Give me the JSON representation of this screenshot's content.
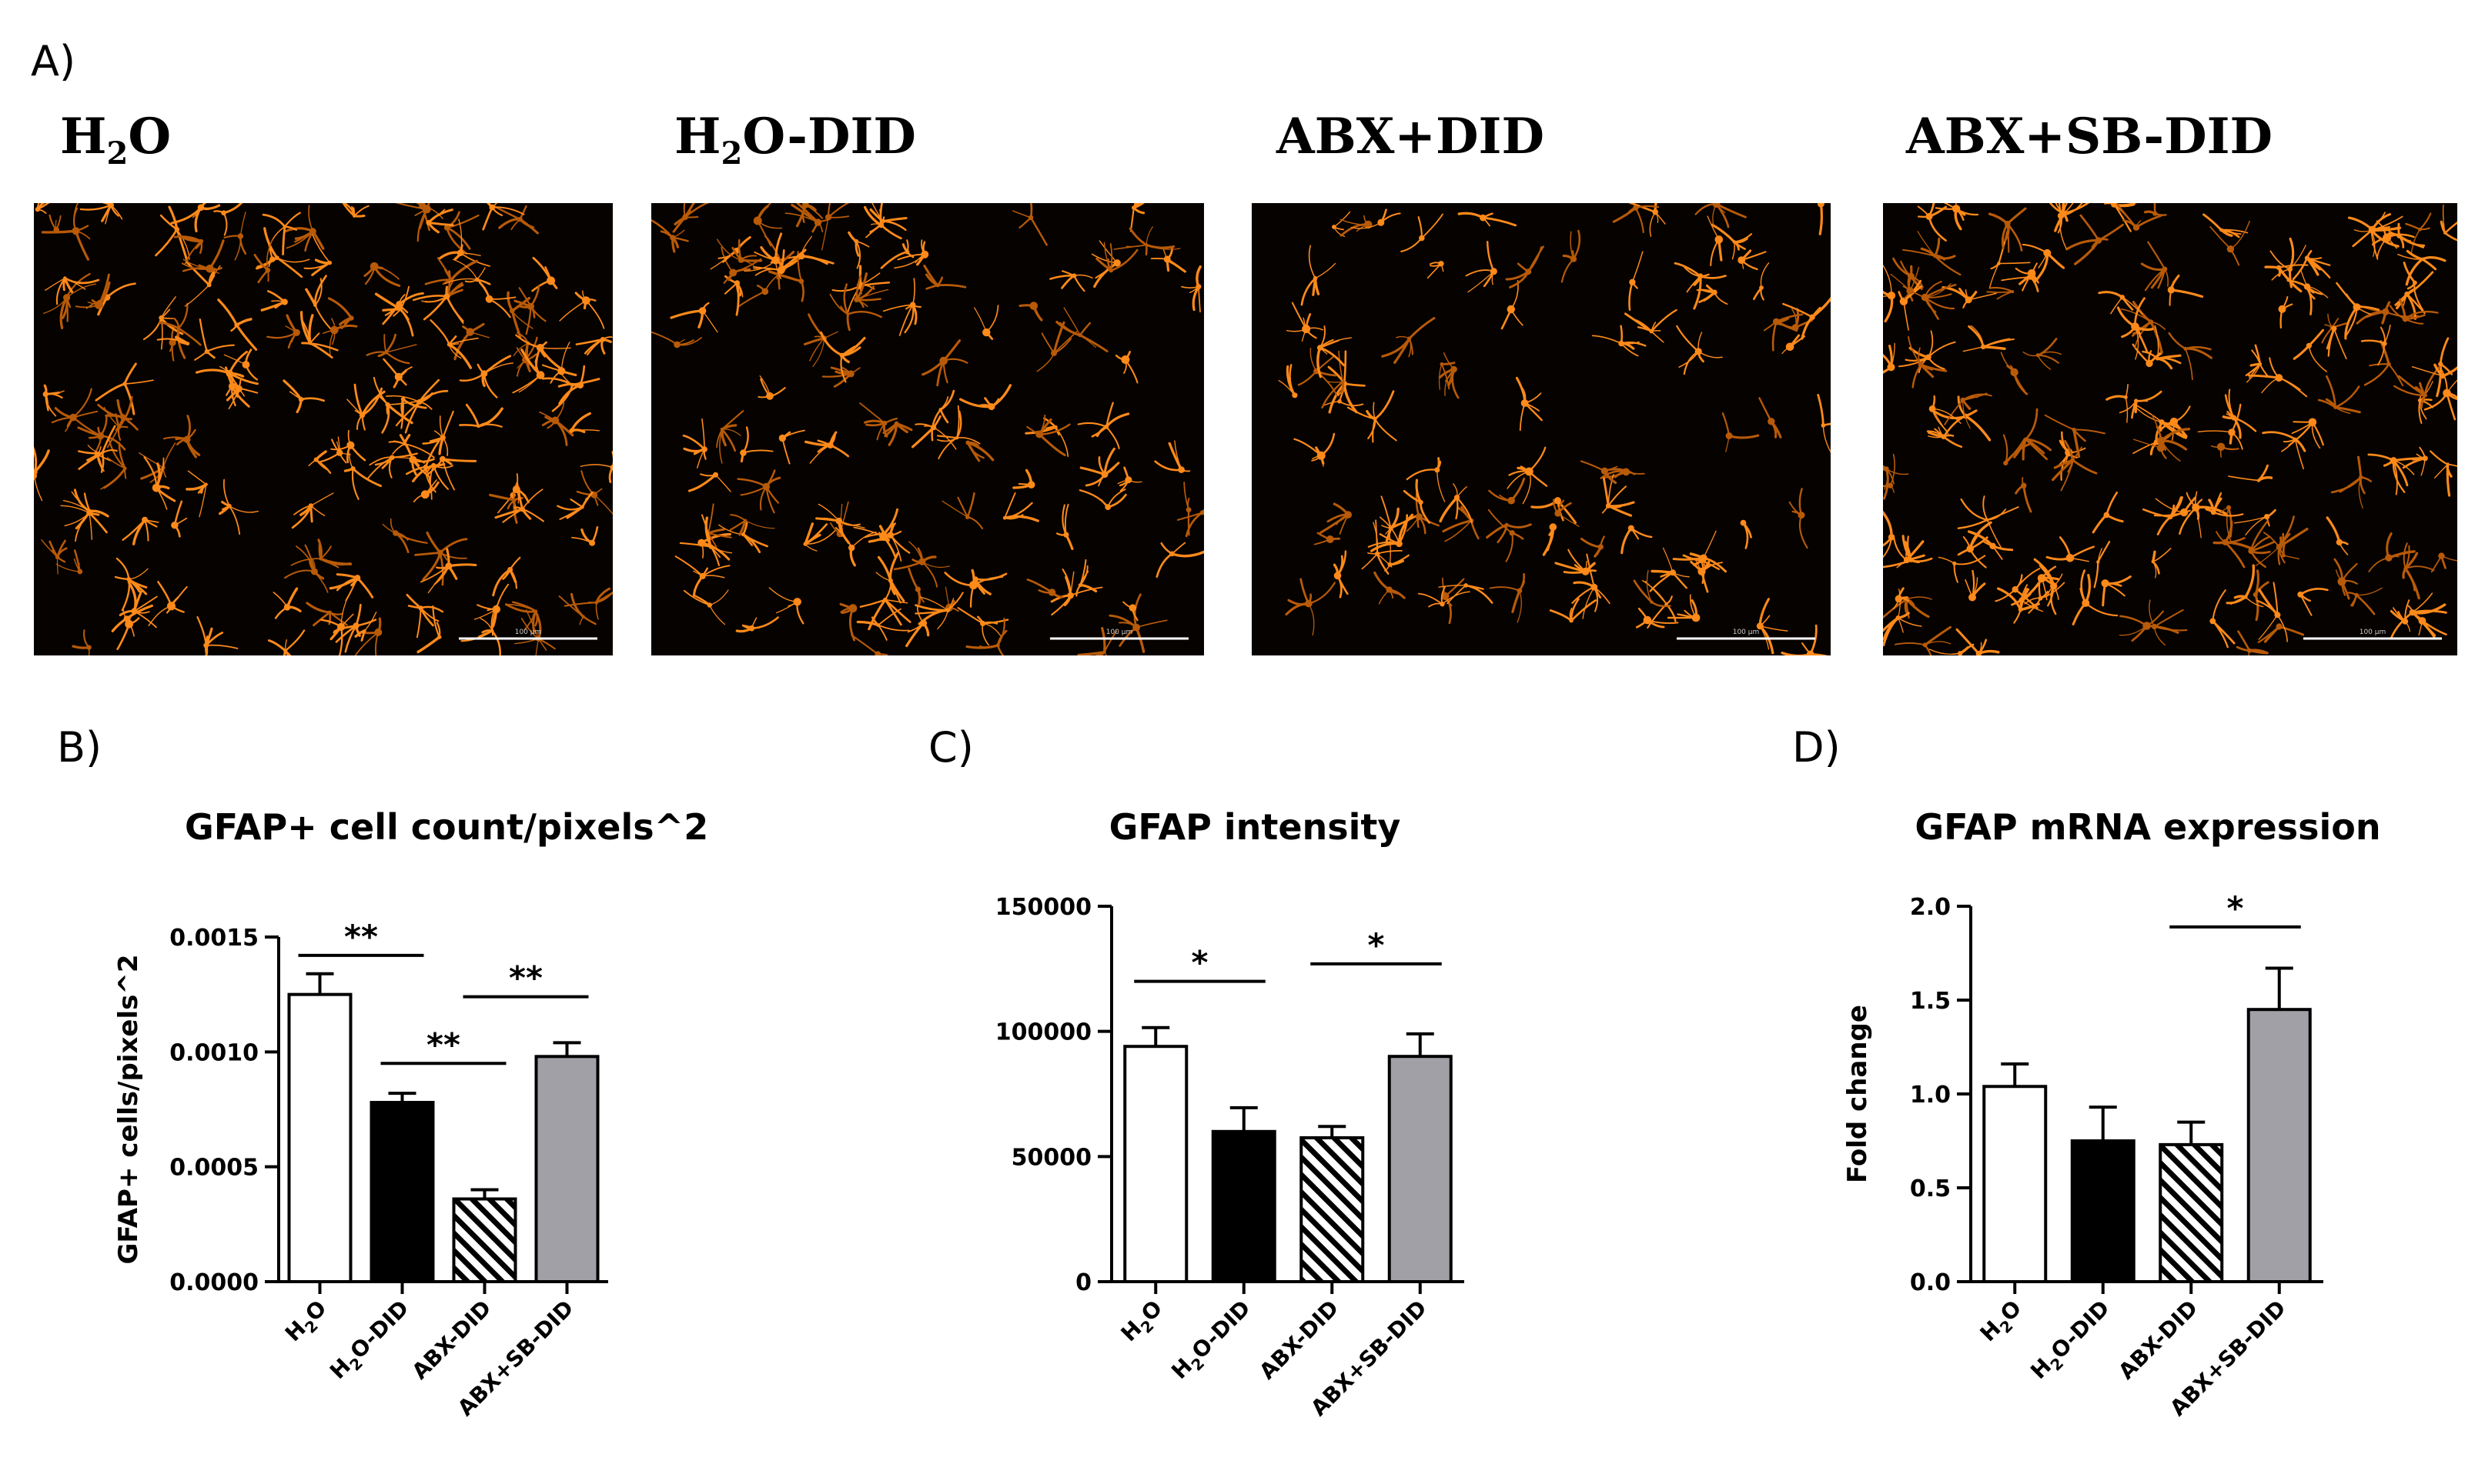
{
  "figure": {
    "panel_a_label": "A)",
    "panel_b_label": "B)",
    "panel_c_label": "C)",
    "panel_d_label": "D)"
  },
  "micrographs": [
    {
      "label_main": "H",
      "label_sub": "2",
      "label_rest": "O",
      "scale_text": "100 µm"
    },
    {
      "label_main": "H",
      "label_sub": "2",
      "label_rest": "O-DID",
      "scale_text": "100 µm"
    },
    {
      "label_main": "ABX+DID",
      "label_sub": "",
      "label_rest": "",
      "scale_text": "100 µm"
    },
    {
      "label_main": "ABX+SB-DID",
      "label_sub": "",
      "label_rest": "",
      "scale_text": "100 µm"
    }
  ],
  "colors": {
    "astrocyte": "#ff8a1a",
    "astrocyte_dim": "#b85a08",
    "background": "#050200",
    "bar_white": "#ffffff",
    "bar_black": "#000000",
    "bar_gray": "#a0a0a6"
  },
  "chart_data": [
    {
      "type": "bar",
      "title": "GFAP+ cell count/pixels^2",
      "ylabel": "GFAP+ cells/pixels^2",
      "categories": [
        {
          "main": "H",
          "sub": "2",
          "rest": "O"
        },
        {
          "main": "H",
          "sub": "2",
          "rest": "O-DID"
        },
        {
          "main": "ABX-DID",
          "sub": "",
          "rest": ""
        },
        {
          "main": "ABX+SB-DID",
          "sub": "",
          "rest": ""
        }
      ],
      "fills": [
        "white",
        "black",
        "hatch",
        "gray"
      ],
      "values": [
        0.00125,
        0.00078,
        0.00036,
        0.00098
      ],
      "errors": [
        9e-05,
        4e-05,
        4e-05,
        6e-05
      ],
      "ylim": [
        0,
        0.0015
      ],
      "yticks": [
        0,
        0.0005,
        0.001,
        0.0015
      ],
      "ytick_labels": [
        "0.0000",
        "0.0005",
        "0.0010",
        "0.0015"
      ],
      "significance": [
        {
          "from": 0,
          "to": 1,
          "y": 0.00142,
          "label": "**"
        },
        {
          "from": 1,
          "to": 2,
          "y": 0.00095,
          "label": "**"
        },
        {
          "from": 2,
          "to": 3,
          "y": 0.00124,
          "label": "**"
        }
      ]
    },
    {
      "type": "bar",
      "title": "GFAP intensity",
      "ylabel": "",
      "categories": [
        {
          "main": "H",
          "sub": "2",
          "rest": "O"
        },
        {
          "main": "H",
          "sub": "2",
          "rest": "O-DID"
        },
        {
          "main": "ABX-DID",
          "sub": "",
          "rest": ""
        },
        {
          "main": "ABX+SB-DID",
          "sub": "",
          "rest": ""
        }
      ],
      "fills": [
        "white",
        "black",
        "hatch",
        "gray"
      ],
      "values": [
        94000,
        60000,
        57500,
        90000
      ],
      "errors": [
        7500,
        9500,
        4500,
        9000
      ],
      "ylim": [
        0,
        150000
      ],
      "yticks": [
        0,
        50000,
        100000,
        150000
      ],
      "ytick_labels": [
        "0",
        "50000",
        "100000",
        "150000"
      ],
      "significance": [
        {
          "from": 0,
          "to": 1,
          "y": 120000,
          "label": "*"
        },
        {
          "from": 2,
          "to": 3,
          "y": 127000,
          "label": "*"
        }
      ]
    },
    {
      "type": "bar",
      "title": "GFAP mRNA expression",
      "ylabel": "Fold change",
      "categories": [
        {
          "main": "H",
          "sub": "2",
          "rest": "O"
        },
        {
          "main": "H",
          "sub": "2",
          "rest": "O-DID"
        },
        {
          "main": "ABX-DID",
          "sub": "",
          "rest": ""
        },
        {
          "main": "ABX+SB-DID",
          "sub": "",
          "rest": ""
        }
      ],
      "fills": [
        "white",
        "black",
        "hatch",
        "gray"
      ],
      "values": [
        1.04,
        0.75,
        0.73,
        1.45
      ],
      "errors": [
        0.12,
        0.18,
        0.12,
        0.22
      ],
      "ylim": [
        0,
        2.0
      ],
      "yticks": [
        0,
        0.5,
        1.0,
        1.5,
        2.0
      ],
      "ytick_labels": [
        "0.0",
        "0.5",
        "1.0",
        "1.5",
        "2.0"
      ],
      "significance": [
        {
          "from": 2,
          "to": 3,
          "y": 1.89,
          "label": "*"
        }
      ]
    }
  ]
}
